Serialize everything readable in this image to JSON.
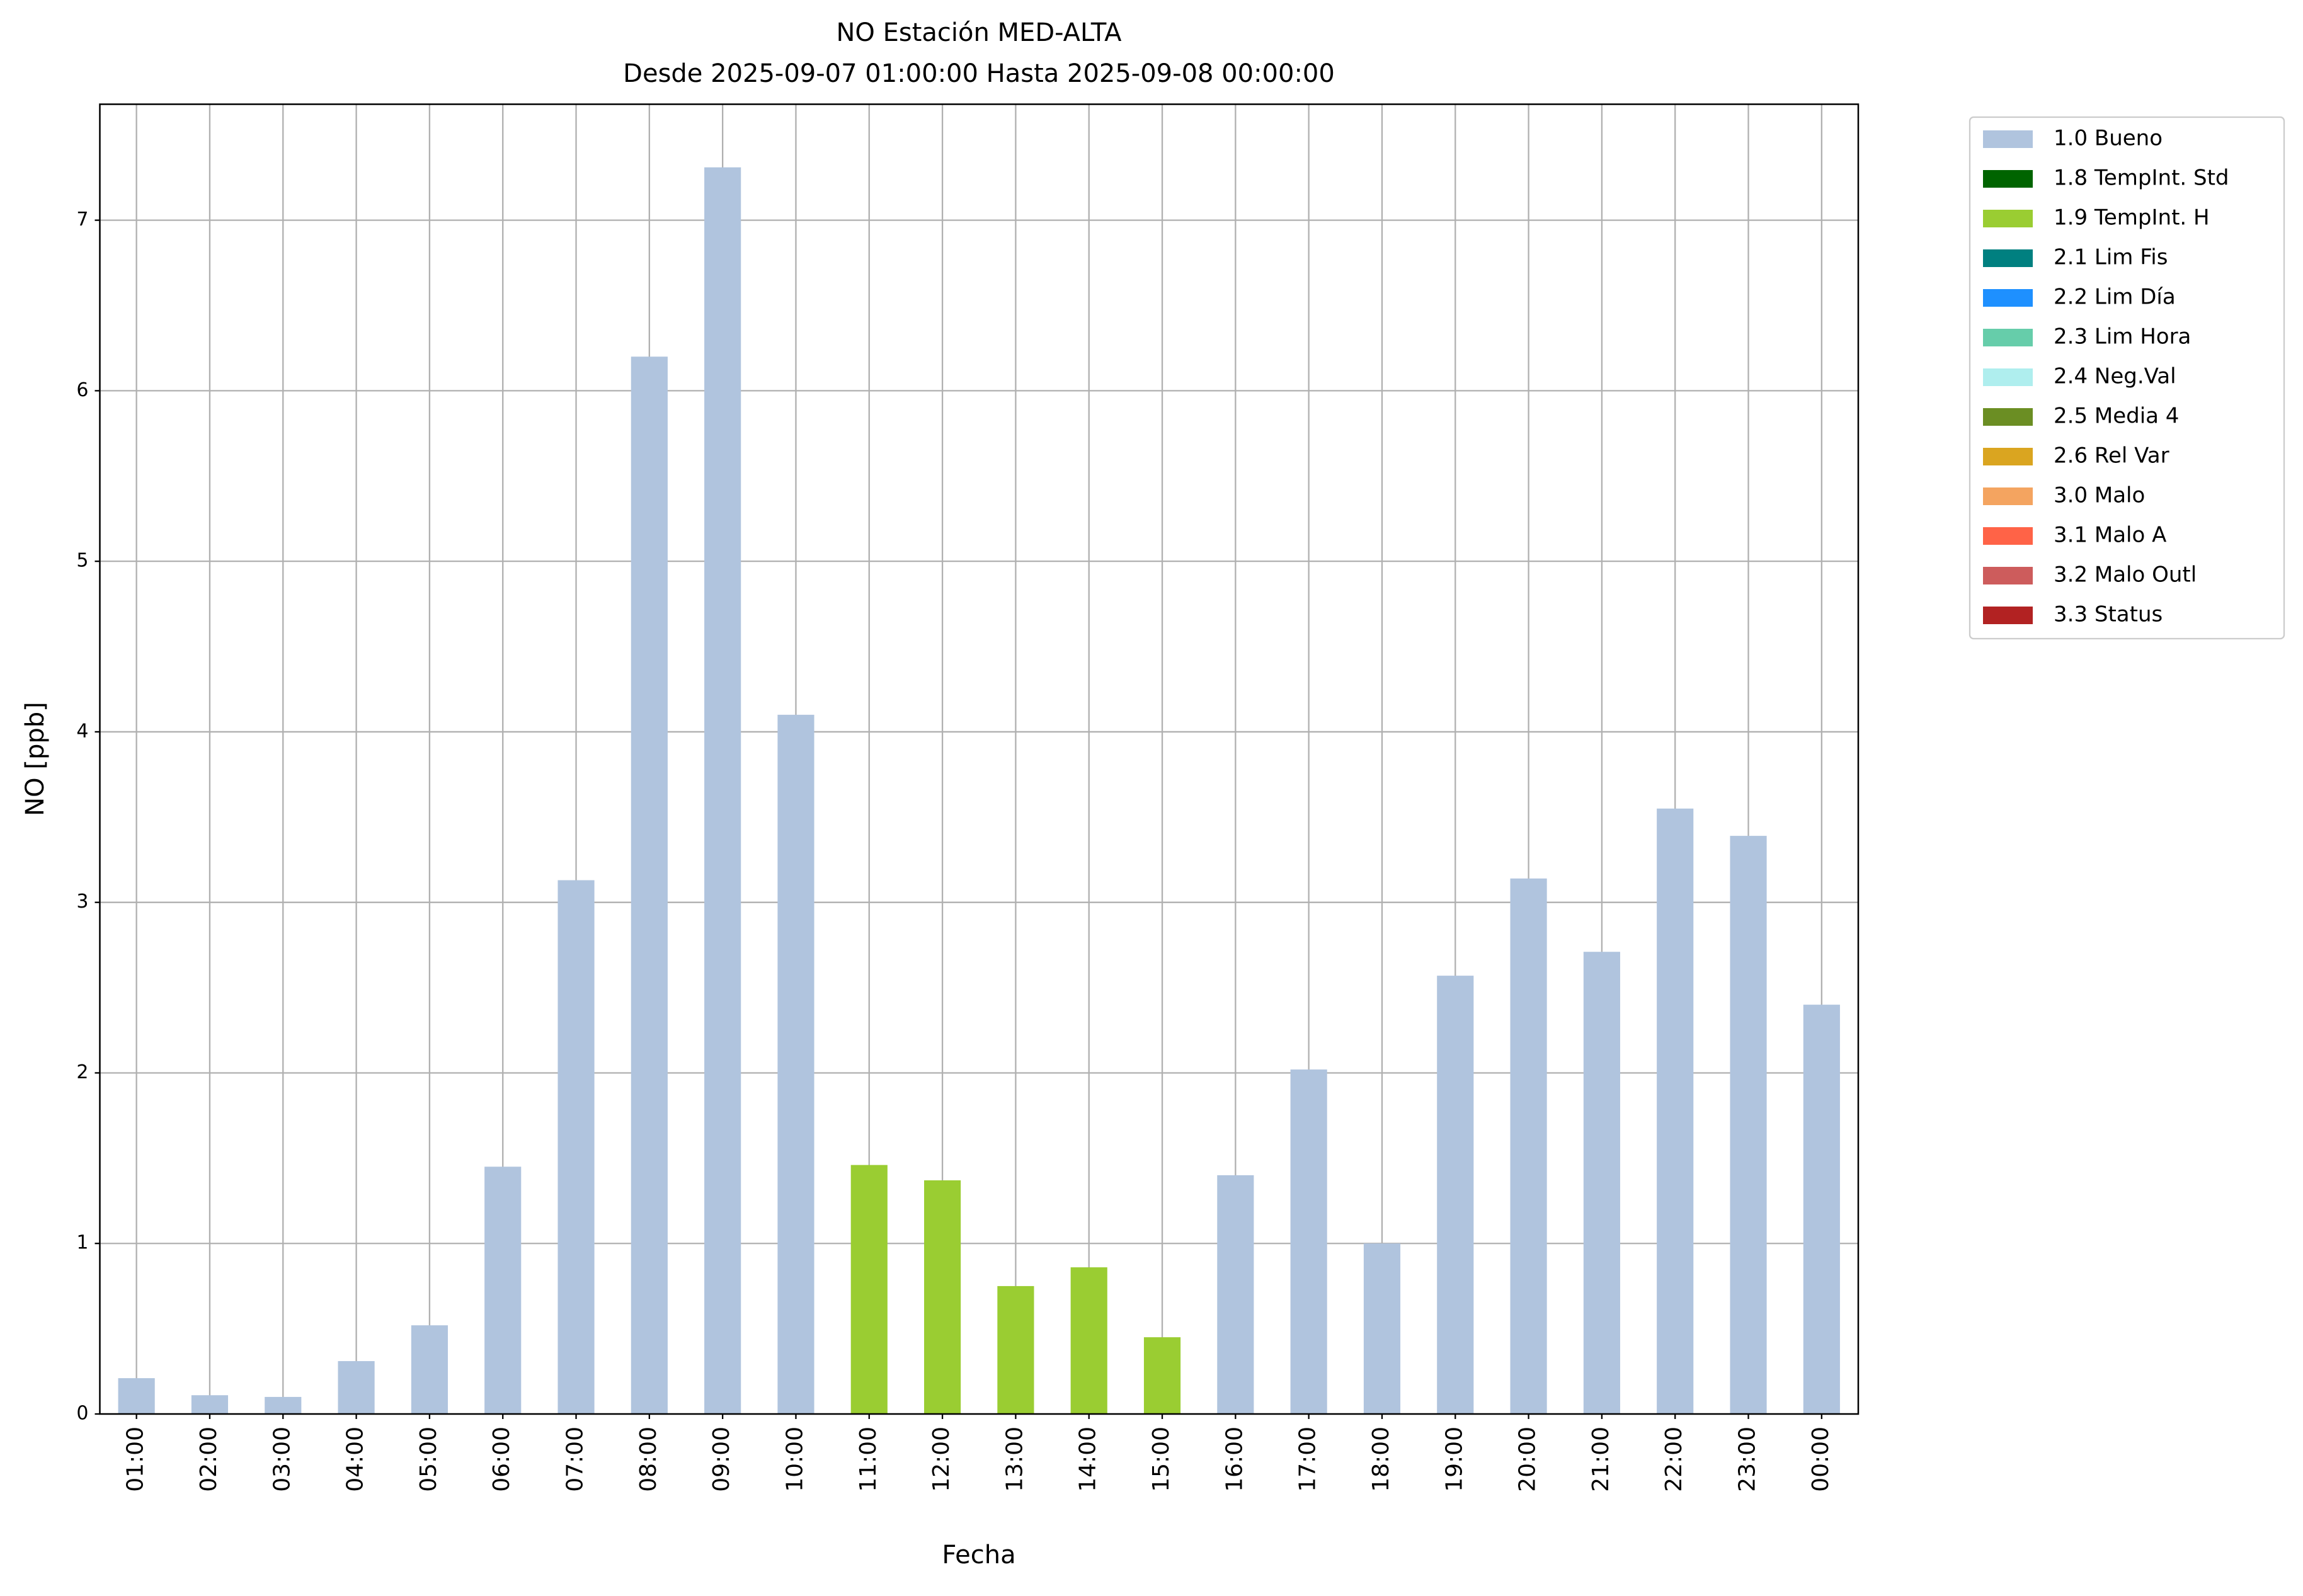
{
  "chart_data": {
    "type": "bar",
    "title": "NO Estación MED-ALTA",
    "subtitle": "Desde 2025-09-07 01:00:00 Hasta 2025-09-08 00:00:00",
    "x_label": "Fecha",
    "y_label": "NO [ppb]",
    "categories": [
      "01:00",
      "02:00",
      "03:00",
      "04:00",
      "05:00",
      "06:00",
      "07:00",
      "08:00",
      "09:00",
      "10:00",
      "11:00",
      "12:00",
      "13:00",
      "14:00",
      "15:00",
      "16:00",
      "17:00",
      "18:00",
      "19:00",
      "20:00",
      "21:00",
      "22:00",
      "23:00",
      "00:00"
    ],
    "series": [
      {
        "name": "1.0 Bueno",
        "color": "#b0c4de",
        "values": [
          0.21,
          0.11,
          0.1,
          0.31,
          0.52,
          1.45,
          3.13,
          6.2,
          7.31,
          4.1,
          null,
          null,
          null,
          null,
          null,
          1.4,
          2.02,
          1.0,
          2.57,
          3.14,
          2.71,
          3.55,
          3.39,
          2.4
        ]
      },
      {
        "name": "1.8 TempInt. Std",
        "color": "#006400",
        "values": [
          null,
          null,
          null,
          null,
          null,
          null,
          null,
          null,
          null,
          null,
          null,
          null,
          null,
          null,
          null,
          null,
          null,
          null,
          null,
          null,
          null,
          null,
          null,
          null
        ]
      },
      {
        "name": "1.9 TempInt. H",
        "color": "#9acd32",
        "values": [
          null,
          null,
          null,
          null,
          null,
          null,
          null,
          null,
          null,
          null,
          1.46,
          1.37,
          0.75,
          0.86,
          0.45,
          null,
          null,
          null,
          null,
          null,
          null,
          null,
          null,
          null
        ]
      },
      {
        "name": "2.1 Lim Fis",
        "color": "#008080",
        "values": [
          null,
          null,
          null,
          null,
          null,
          null,
          null,
          null,
          null,
          null,
          null,
          null,
          null,
          null,
          null,
          null,
          null,
          null,
          null,
          null,
          null,
          null,
          null,
          null
        ]
      },
      {
        "name": "2.2 Lim Día",
        "color": "#1e90ff",
        "values": [
          null,
          null,
          null,
          null,
          null,
          null,
          null,
          null,
          null,
          null,
          null,
          null,
          null,
          null,
          null,
          null,
          null,
          null,
          null,
          null,
          null,
          null,
          null,
          null
        ]
      },
      {
        "name": "2.3 Lim Hora",
        "color": "#66cdaa",
        "values": [
          null,
          null,
          null,
          null,
          null,
          null,
          null,
          null,
          null,
          null,
          null,
          null,
          null,
          null,
          null,
          null,
          null,
          null,
          null,
          null,
          null,
          null,
          null,
          null
        ]
      },
      {
        "name": "2.4 Neg.Val",
        "color": "#afeeee",
        "values": [
          null,
          null,
          null,
          null,
          null,
          null,
          null,
          null,
          null,
          null,
          null,
          null,
          null,
          null,
          null,
          null,
          null,
          null,
          null,
          null,
          null,
          null,
          null,
          null
        ]
      },
      {
        "name": "2.5 Media 4",
        "color": "#6b8e23",
        "values": [
          null,
          null,
          null,
          null,
          null,
          null,
          null,
          null,
          null,
          null,
          null,
          null,
          null,
          null,
          null,
          null,
          null,
          null,
          null,
          null,
          null,
          null,
          null,
          null
        ]
      },
      {
        "name": "2.6 Rel Var",
        "color": "#daa520",
        "values": [
          null,
          null,
          null,
          null,
          null,
          null,
          null,
          null,
          null,
          null,
          null,
          null,
          null,
          null,
          null,
          null,
          null,
          null,
          null,
          null,
          null,
          null,
          null,
          null
        ]
      },
      {
        "name": "3.0 Malo",
        "color": "#f4a460",
        "values": [
          null,
          null,
          null,
          null,
          null,
          null,
          null,
          null,
          null,
          null,
          null,
          null,
          null,
          null,
          null,
          null,
          null,
          null,
          null,
          null,
          null,
          null,
          null,
          null
        ]
      },
      {
        "name": "3.1 Malo A",
        "color": "#ff6347",
        "values": [
          null,
          null,
          null,
          null,
          null,
          null,
          null,
          null,
          null,
          null,
          null,
          null,
          null,
          null,
          null,
          null,
          null,
          null,
          null,
          null,
          null,
          null,
          null,
          null
        ]
      },
      {
        "name": "3.2 Malo Outl",
        "color": "#cd5c5c",
        "values": [
          null,
          null,
          null,
          null,
          null,
          null,
          null,
          null,
          null,
          null,
          null,
          null,
          null,
          null,
          null,
          null,
          null,
          null,
          null,
          null,
          null,
          null,
          null,
          null
        ]
      },
      {
        "name": "3.3 Status",
        "color": "#b22222",
        "values": [
          null,
          null,
          null,
          null,
          null,
          null,
          null,
          null,
          null,
          null,
          null,
          null,
          null,
          null,
          null,
          null,
          null,
          null,
          null,
          null,
          null,
          null,
          null,
          null
        ]
      }
    ],
    "ylim": [
      0,
      7.68
    ],
    "yticks": [
      0,
      1,
      2,
      3,
      4,
      5,
      6,
      7
    ],
    "grid": true
  }
}
